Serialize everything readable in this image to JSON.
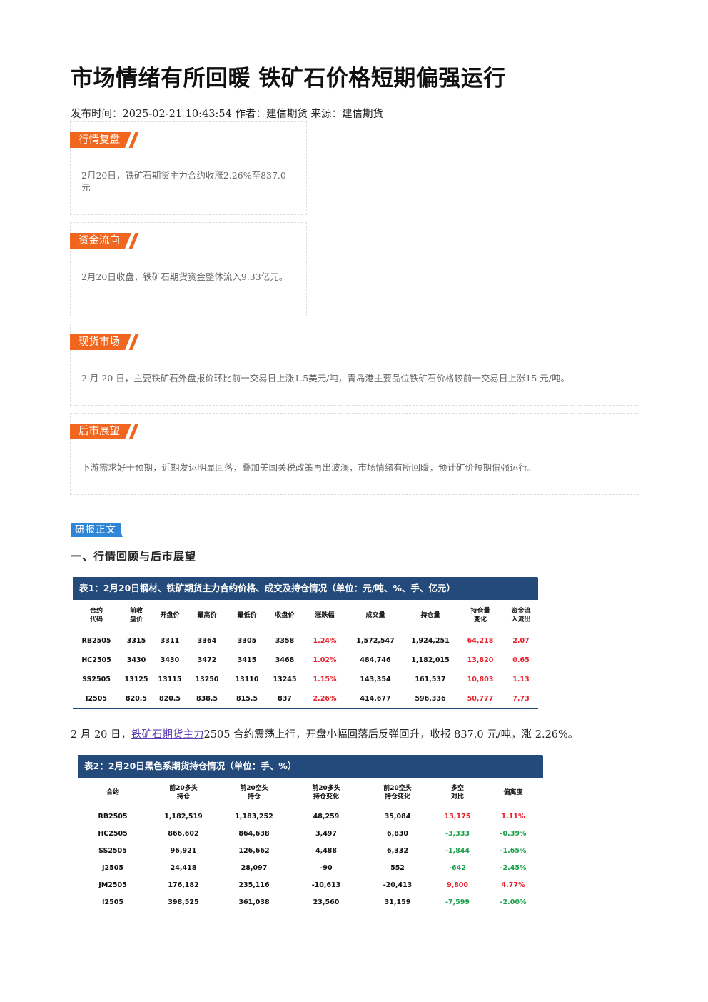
{
  "article": {
    "title": "市场情绪有所回暖 铁矿石价格短期偏强运行",
    "meta": {
      "publish_label": "发布时间：",
      "publish_time": "2025-02-21 10:43:54",
      "author_label": " 作者：",
      "author": "建信期货",
      "source_label": " 来源：",
      "source": "建信期货"
    }
  },
  "summary_boxes": [
    {
      "tag": "行情复盘",
      "text": "2月20日，铁矿石期货主力合约收涨2.26%至837.0元。"
    },
    {
      "tag": "资金流向",
      "text": "2月20日收盘，铁矿石期货资金整体流入9.33亿元。"
    },
    {
      "tag": "现货市场",
      "text": "2 月 20 日，主要铁矿石外盘报价环比前一交易日上涨1.5美元/吨，青岛港主要品位铁矿石价格较前一交易日上涨15 元/吨。"
    },
    {
      "tag": "后市展望",
      "text": "下游需求好于预期，近期发运明显回落，叠加美国关税政策再出波澜，市场情绪有所回暖，预计矿价短期偏强运行。"
    }
  ],
  "report": {
    "section_tag": "研报正文",
    "heading": "一、行情回顾与后市展望",
    "para_prefix": "2 月 20 日，",
    "para_link": "铁矿石期货主力",
    "para_suffix": "2505 合约震荡上行，开盘小幅回落后反弹回升，收报 837.0 元/吨，涨 2.26%。"
  },
  "table1": {
    "title": "表1：2月20日钢材、铁矿期货主力合约价格、成交及持仓情况（单位：元/吨、%、手、亿元）",
    "headers": [
      "合约\n代码",
      "前收\n盘价",
      "开盘价",
      "最高价",
      "最低价",
      "收盘价",
      "涨跌幅",
      "成交量",
      "持仓量",
      "持仓量\n变化",
      "资金流\n入流出"
    ],
    "rows": [
      [
        "RB2505",
        "3315",
        "3311",
        "3364",
        "3305",
        "3358",
        "1.24%",
        "1,572,547",
        "1,924,251",
        "64,218",
        "2.07"
      ],
      [
        "HC2505",
        "3430",
        "3430",
        "3472",
        "3415",
        "3468",
        "1.02%",
        "484,746",
        "1,182,015",
        "13,820",
        "0.65"
      ],
      [
        "SS2505",
        "13125",
        "13115",
        "13250",
        "13110",
        "13245",
        "1.15%",
        "143,354",
        "161,537",
        "10,803",
        "1.13"
      ],
      [
        "I2505",
        "820.5",
        "820.5",
        "838.5",
        "815.5",
        "837",
        "2.26%",
        "414,677",
        "596,336",
        "50,777",
        "7.73"
      ]
    ]
  },
  "table2": {
    "title": "表2：2月20日黑色系期货持仓情况（单位：手、%）",
    "headers": [
      "合约",
      "前20多头\n持仓",
      "前20空头\n持仓",
      "前20多头\n持仓变化",
      "前20空头\n持仓变化",
      "多空\n对比",
      "偏离度"
    ],
    "rows": [
      [
        "RB2505",
        "1,182,519",
        "1,183,252",
        "48,259",
        "35,084",
        "13,175",
        "1.11%"
      ],
      [
        "HC2505",
        "866,602",
        "864,638",
        "3,497",
        "6,830",
        "-3,333",
        "-0.39%"
      ],
      [
        "SS2505",
        "96,921",
        "126,662",
        "4,488",
        "6,332",
        "-1,844",
        "-1.65%"
      ],
      [
        "J2505",
        "24,418",
        "28,097",
        "-90",
        "552",
        "-642",
        "-2.45%"
      ],
      [
        "JM2505",
        "176,182",
        "235,116",
        "-10,613",
        "-20,413",
        "9,800",
        "4.77%"
      ],
      [
        "I2505",
        "398,525",
        "361,038",
        "23,560",
        "31,159",
        "-7,599",
        "-2.00%"
      ]
    ]
  },
  "colors": {
    "up": "#e8202a",
    "down": "#1aa04a",
    "table_header_bg": "#234a7a",
    "tag_orange": "#f0661e",
    "tag_blue": "#2f86d6"
  }
}
